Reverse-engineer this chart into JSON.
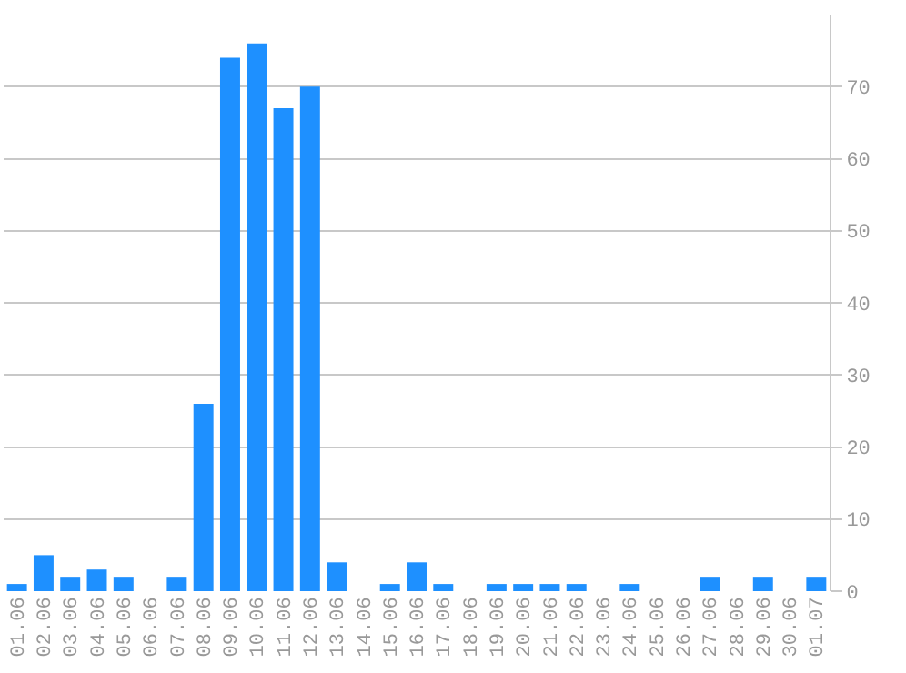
{
  "chart_data": {
    "type": "bar",
    "categories": [
      "01.06",
      "02.06",
      "03.06",
      "04.06",
      "05.06",
      "06.06",
      "07.06",
      "08.06",
      "09.06",
      "10.06",
      "11.06",
      "12.06",
      "13.06",
      "14.06",
      "15.06",
      "16.06",
      "17.06",
      "18.06",
      "19.06",
      "20.06",
      "21.06",
      "22.06",
      "23.06",
      "24.06",
      "25.06",
      "26.06",
      "27.06",
      "28.06",
      "29.06",
      "30.06",
      "01.07"
    ],
    "values": [
      1,
      5,
      2,
      3,
      2,
      0,
      2,
      26,
      74,
      76,
      67,
      70,
      4,
      0,
      1,
      4,
      1,
      0,
      1,
      1,
      1,
      1,
      0,
      1,
      0,
      0,
      2,
      0,
      2,
      0,
      2
    ],
    "color": "#1e90ff",
    "ylim": [
      0,
      80
    ],
    "yticks": [
      0,
      10,
      20,
      30,
      40,
      50,
      60,
      70
    ],
    "grid": "y",
    "legend": false
  }
}
